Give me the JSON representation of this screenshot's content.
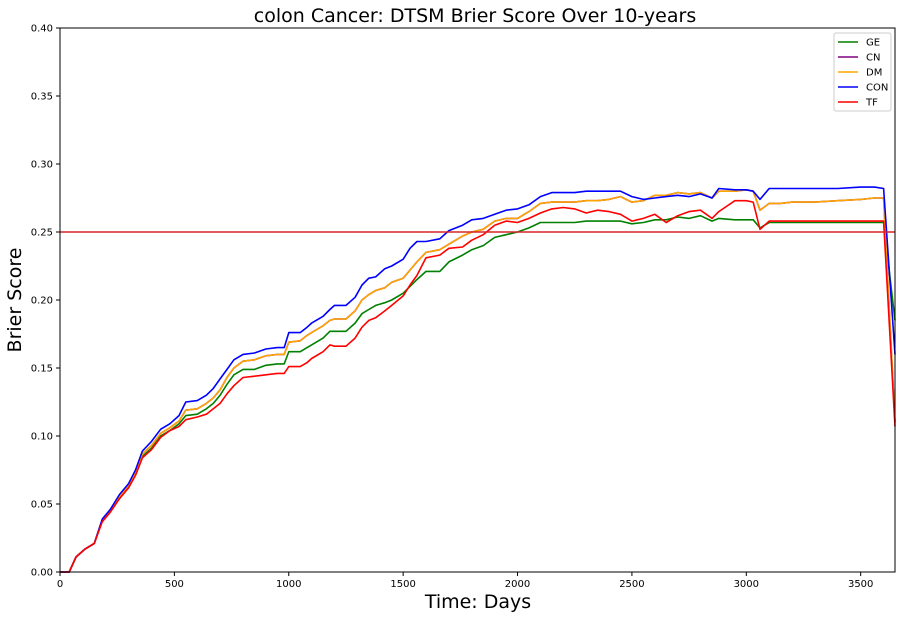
{
  "chart_data": {
    "type": "line",
    "title": "colon Cancer: DTSM Brier Score Over 10-years",
    "xlabel": "Time: Days",
    "ylabel": "Brier Score",
    "xlim": [
      0,
      3650
    ],
    "ylim": [
      0,
      0.4
    ],
    "xticks": [
      0,
      500,
      1000,
      1500,
      2000,
      2500,
      3000,
      3500
    ],
    "yticks": [
      "0.00",
      "0.05",
      "0.10",
      "0.15",
      "0.20",
      "0.25",
      "0.30",
      "0.35",
      "0.40"
    ],
    "legend_position": "top-right",
    "reference_line": {
      "y": 0.25,
      "color": "#d62728"
    },
    "x": [
      0,
      40,
      70,
      110,
      150,
      185,
      220,
      260,
      300,
      330,
      360,
      400,
      440,
      480,
      520,
      550,
      600,
      640,
      670,
      700,
      730,
      760,
      800,
      850,
      900,
      950,
      980,
      1000,
      1050,
      1080,
      1100,
      1150,
      1180,
      1200,
      1250,
      1290,
      1320,
      1350,
      1380,
      1420,
      1450,
      1500,
      1530,
      1560,
      1600,
      1660,
      1700,
      1760,
      1800,
      1850,
      1900,
      1950,
      2000,
      2050,
      2100,
      2150,
      2200,
      2250,
      2300,
      2350,
      2400,
      2450,
      2500,
      2550,
      2600,
      2650,
      2700,
      2750,
      2800,
      2850,
      2880,
      2950,
      3000,
      3030,
      3060,
      3100,
      3150,
      3200,
      3300,
      3400,
      3500,
      3560,
      3600,
      3650
    ],
    "series": [
      {
        "name": "GE",
        "color": "#008000",
        "values": [
          0.0,
          0.0,
          0.011,
          0.017,
          0.021,
          0.038,
          0.045,
          0.054,
          0.062,
          0.072,
          0.085,
          0.091,
          0.1,
          0.104,
          0.109,
          0.115,
          0.116,
          0.12,
          0.124,
          0.13,
          0.138,
          0.145,
          0.149,
          0.149,
          0.152,
          0.153,
          0.153,
          0.162,
          0.162,
          0.165,
          0.167,
          0.172,
          0.177,
          0.177,
          0.177,
          0.183,
          0.19,
          0.193,
          0.196,
          0.198,
          0.2,
          0.205,
          0.21,
          0.215,
          0.221,
          0.221,
          0.228,
          0.233,
          0.237,
          0.24,
          0.246,
          0.248,
          0.25,
          0.253,
          0.257,
          0.257,
          0.257,
          0.257,
          0.258,
          0.258,
          0.258,
          0.258,
          0.256,
          0.257,
          0.259,
          0.259,
          0.261,
          0.26,
          0.262,
          0.258,
          0.26,
          0.259,
          0.259,
          0.259,
          0.253,
          0.257,
          0.257,
          0.257,
          0.257,
          0.257,
          0.257,
          0.257,
          0.257,
          0.185
        ]
      },
      {
        "name": "CN",
        "color": "#800080",
        "values": [
          0.0,
          0.0,
          0.011,
          0.017,
          0.021,
          0.038,
          0.045,
          0.055,
          0.063,
          0.073,
          0.087,
          0.093,
          0.102,
          0.106,
          0.111,
          0.119,
          0.12,
          0.124,
          0.128,
          0.134,
          0.143,
          0.15,
          0.155,
          0.156,
          0.159,
          0.16,
          0.16,
          0.169,
          0.17,
          0.174,
          0.176,
          0.181,
          0.185,
          0.186,
          0.186,
          0.192,
          0.2,
          0.204,
          0.207,
          0.209,
          0.213,
          0.216,
          0.222,
          0.228,
          0.235,
          0.237,
          0.241,
          0.247,
          0.25,
          0.252,
          0.258,
          0.26,
          0.26,
          0.265,
          0.271,
          0.272,
          0.272,
          0.272,
          0.273,
          0.273,
          0.274,
          0.276,
          0.272,
          0.273,
          0.277,
          0.277,
          0.279,
          0.278,
          0.279,
          0.275,
          0.28,
          0.28,
          0.281,
          0.28,
          0.266,
          0.271,
          0.271,
          0.272,
          0.272,
          0.273,
          0.274,
          0.275,
          0.275,
          0.11
        ]
      },
      {
        "name": "DM",
        "color": "#ffa500",
        "values": [
          0.0,
          0.0,
          0.011,
          0.017,
          0.021,
          0.038,
          0.045,
          0.055,
          0.063,
          0.073,
          0.087,
          0.093,
          0.102,
          0.106,
          0.111,
          0.119,
          0.12,
          0.124,
          0.128,
          0.134,
          0.143,
          0.15,
          0.155,
          0.156,
          0.159,
          0.16,
          0.16,
          0.169,
          0.17,
          0.174,
          0.176,
          0.181,
          0.185,
          0.186,
          0.186,
          0.192,
          0.2,
          0.204,
          0.207,
          0.209,
          0.213,
          0.216,
          0.222,
          0.228,
          0.235,
          0.237,
          0.241,
          0.247,
          0.25,
          0.252,
          0.258,
          0.26,
          0.26,
          0.265,
          0.271,
          0.272,
          0.272,
          0.272,
          0.273,
          0.273,
          0.274,
          0.276,
          0.272,
          0.273,
          0.277,
          0.277,
          0.279,
          0.278,
          0.279,
          0.275,
          0.28,
          0.28,
          0.281,
          0.28,
          0.266,
          0.271,
          0.271,
          0.272,
          0.272,
          0.273,
          0.274,
          0.275,
          0.275,
          0.11
        ]
      },
      {
        "name": "CON",
        "color": "#0000ff",
        "values": [
          0.0,
          0.0,
          0.011,
          0.017,
          0.021,
          0.039,
          0.046,
          0.057,
          0.065,
          0.075,
          0.089,
          0.096,
          0.105,
          0.109,
          0.115,
          0.125,
          0.126,
          0.13,
          0.135,
          0.142,
          0.149,
          0.156,
          0.16,
          0.161,
          0.164,
          0.165,
          0.165,
          0.176,
          0.176,
          0.18,
          0.183,
          0.188,
          0.193,
          0.196,
          0.196,
          0.202,
          0.211,
          0.216,
          0.217,
          0.223,
          0.225,
          0.23,
          0.238,
          0.243,
          0.243,
          0.245,
          0.251,
          0.255,
          0.259,
          0.26,
          0.263,
          0.266,
          0.267,
          0.27,
          0.276,
          0.279,
          0.279,
          0.279,
          0.28,
          0.28,
          0.28,
          0.28,
          0.276,
          0.274,
          0.275,
          0.276,
          0.277,
          0.276,
          0.278,
          0.275,
          0.282,
          0.281,
          0.281,
          0.28,
          0.274,
          0.282,
          0.282,
          0.282,
          0.282,
          0.282,
          0.283,
          0.283,
          0.282,
          0.16
        ]
      },
      {
        "name": "TF",
        "color": "#ff0000",
        "values": [
          0.0,
          0.0,
          0.011,
          0.017,
          0.021,
          0.037,
          0.044,
          0.054,
          0.062,
          0.071,
          0.084,
          0.09,
          0.099,
          0.104,
          0.107,
          0.112,
          0.114,
          0.116,
          0.12,
          0.124,
          0.131,
          0.137,
          0.143,
          0.144,
          0.145,
          0.146,
          0.146,
          0.151,
          0.151,
          0.154,
          0.157,
          0.162,
          0.167,
          0.166,
          0.166,
          0.172,
          0.18,
          0.185,
          0.187,
          0.192,
          0.196,
          0.203,
          0.211,
          0.218,
          0.231,
          0.233,
          0.238,
          0.239,
          0.244,
          0.248,
          0.255,
          0.258,
          0.257,
          0.26,
          0.264,
          0.267,
          0.268,
          0.267,
          0.264,
          0.266,
          0.265,
          0.263,
          0.258,
          0.26,
          0.263,
          0.257,
          0.262,
          0.265,
          0.266,
          0.26,
          0.265,
          0.273,
          0.273,
          0.272,
          0.252,
          0.258,
          0.258,
          0.258,
          0.258,
          0.258,
          0.258,
          0.258,
          0.258,
          0.107
        ]
      }
    ]
  }
}
